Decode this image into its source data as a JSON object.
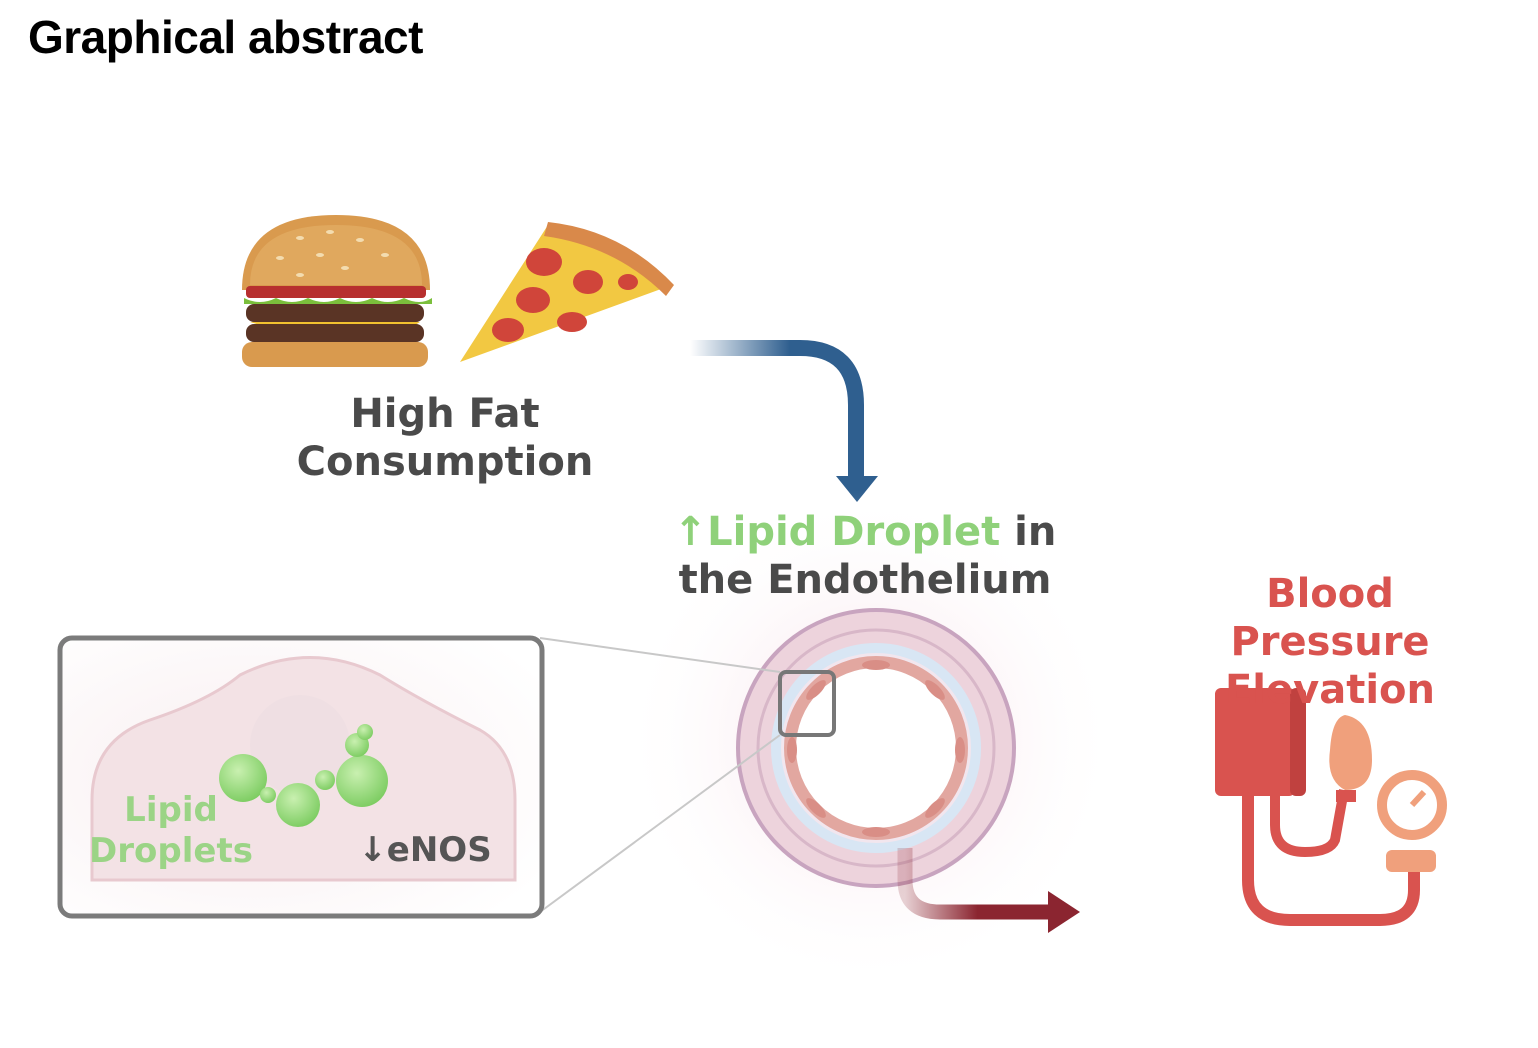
{
  "header": {
    "title": "Graphical abstract"
  },
  "labels": {
    "high_fat_line1": "High Fat",
    "high_fat_line2": "Consumption",
    "lipid_arrow": "↑",
    "lipid_green": "Lipid Droplet",
    "lipid_in": " in",
    "lipid_line2": "the Endothelium",
    "bp_line1": "Blood Pressure",
    "bp_line2": "Elevation",
    "inset_lipid_line1": "Lipid",
    "inset_lipid_line2": "Droplets",
    "inset_enos": "↓eNOS"
  },
  "icons": {
    "burger": "burger-icon",
    "pizza": "pizza-icon",
    "vessel": "blood-vessel-icon",
    "cell": "endothelial-cell-icon",
    "bp_monitor": "blood-pressure-monitor-icon"
  },
  "colors": {
    "green_accent": "#8fd17a",
    "red_accent": "#d9534f",
    "blue_arrow": "#2f5f8f",
    "maroon_arrow": "#8b2530",
    "text_gray": "#4a4a4a"
  }
}
